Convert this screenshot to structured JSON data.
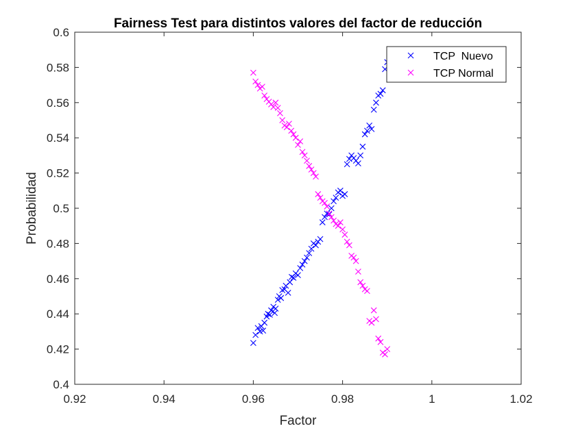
{
  "chart_data": {
    "type": "scatter",
    "title": "Fairness Test para distintos valores del factor de reducción",
    "xlabel": "Factor",
    "ylabel": "Probabilidad",
    "xlim": [
      0.92,
      1.02
    ],
    "ylim": [
      0.4,
      0.6
    ],
    "xticks": [
      "0.92",
      "0.94",
      "0.96",
      "0.98",
      "1",
      "1.02"
    ],
    "yticks": [
      "0.4",
      "0.42",
      "0.44",
      "0.46",
      "0.48",
      "0.5",
      "0.52",
      "0.54",
      "0.56",
      "0.58",
      "0.6"
    ],
    "grid": false,
    "legend_position": "top-right",
    "marker": "x",
    "series": [
      {
        "name": "TCP  Nuevo",
        "color": "#0000ff",
        "x": [
          0.96,
          0.9605,
          0.961,
          0.9615,
          0.9618,
          0.9622,
          0.9625,
          0.963,
          0.9633,
          0.9637,
          0.964,
          0.9645,
          0.9648,
          0.965,
          0.9655,
          0.9658,
          0.9662,
          0.9665,
          0.967,
          0.9673,
          0.9678,
          0.9682,
          0.9686,
          0.969,
          0.9695,
          0.97,
          0.9705,
          0.971,
          0.9715,
          0.972,
          0.9725,
          0.973,
          0.9735,
          0.974,
          0.9745,
          0.975,
          0.9755,
          0.976,
          0.9765,
          0.977,
          0.9775,
          0.978,
          0.9785,
          0.979,
          0.9795,
          0.98,
          0.9805,
          0.981,
          0.9815,
          0.982,
          0.9825,
          0.983,
          0.9835,
          0.984,
          0.9845,
          0.985,
          0.9855,
          0.986,
          0.9865,
          0.987,
          0.9875,
          0.988,
          0.9885,
          0.989,
          0.9895,
          0.99
        ],
        "y": [
          0.4235,
          0.428,
          0.432,
          0.43,
          0.433,
          0.4305,
          0.435,
          0.4385,
          0.44,
          0.4395,
          0.442,
          0.444,
          0.4405,
          0.443,
          0.448,
          0.45,
          0.449,
          0.4535,
          0.454,
          0.456,
          0.452,
          0.458,
          0.461,
          0.4605,
          0.463,
          0.462,
          0.466,
          0.468,
          0.47,
          0.472,
          0.4745,
          0.477,
          0.48,
          0.479,
          0.481,
          0.4825,
          0.492,
          0.495,
          0.497,
          0.4965,
          0.5,
          0.504,
          0.506,
          0.509,
          0.51,
          0.507,
          0.508,
          0.525,
          0.528,
          0.53,
          0.5285,
          0.527,
          0.5255,
          0.53,
          0.535,
          0.542,
          0.544,
          0.547,
          0.545,
          0.556,
          0.56,
          0.564,
          0.565,
          0.567,
          0.579,
          0.583
        ]
      },
      {
        "name": "TCP Normal",
        "color": "#ff00ff",
        "x": [
          0.96,
          0.9605,
          0.961,
          0.9615,
          0.962,
          0.9625,
          0.963,
          0.9635,
          0.964,
          0.9645,
          0.965,
          0.9655,
          0.966,
          0.9665,
          0.967,
          0.9675,
          0.968,
          0.9685,
          0.969,
          0.9695,
          0.97,
          0.9705,
          0.971,
          0.9715,
          0.972,
          0.9725,
          0.973,
          0.9735,
          0.974,
          0.9745,
          0.975,
          0.9755,
          0.976,
          0.9765,
          0.977,
          0.9775,
          0.978,
          0.9785,
          0.979,
          0.9795,
          0.98,
          0.9805,
          0.981,
          0.9815,
          0.982,
          0.9825,
          0.983,
          0.9835,
          0.984,
          0.9845,
          0.985,
          0.9855,
          0.986,
          0.9865,
          0.987,
          0.9875,
          0.988,
          0.9885,
          0.989,
          0.9895,
          0.99
        ],
        "y": [
          0.577,
          0.572,
          0.57,
          0.568,
          0.569,
          0.564,
          0.562,
          0.5605,
          0.559,
          0.5575,
          0.56,
          0.557,
          0.554,
          0.55,
          0.547,
          0.546,
          0.548,
          0.544,
          0.542,
          0.54,
          0.536,
          0.538,
          0.532,
          0.53,
          0.527,
          0.524,
          0.522,
          0.52,
          0.518,
          0.508,
          0.506,
          0.504,
          0.503,
          0.501,
          0.497,
          0.495,
          0.493,
          0.491,
          0.49,
          0.492,
          0.488,
          0.485,
          0.481,
          0.479,
          0.473,
          0.472,
          0.47,
          0.464,
          0.458,
          0.456,
          0.454,
          0.453,
          0.436,
          0.435,
          0.442,
          0.437,
          0.426,
          0.424,
          0.418,
          0.417,
          0.42
        ]
      }
    ]
  }
}
